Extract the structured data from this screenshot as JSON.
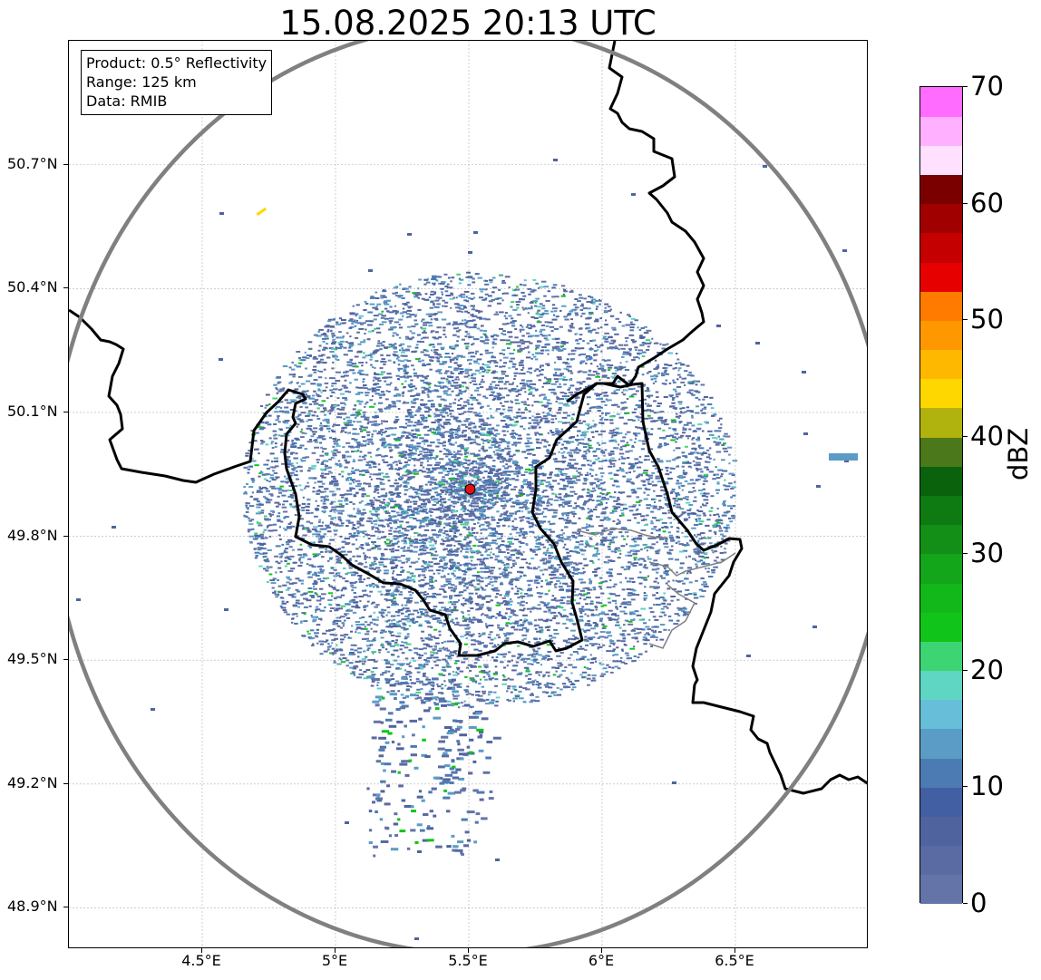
{
  "title": "15.08.2025 20:13 UTC",
  "info": {
    "product": "Product: 0.5° Reflectivity",
    "range": "Range: 125 km",
    "data": "Data: RMIB"
  },
  "map": {
    "lon_range": [
      4.0,
      7.0
    ],
    "lat_range": [
      48.8,
      51.0
    ],
    "radar_site": {
      "lon": 5.505,
      "lat": 49.914
    },
    "range_ring_km": 125,
    "grid": true,
    "lat_ticks": [
      {
        "value": 50.7,
        "label": "50.7°N"
      },
      {
        "value": 50.4,
        "label": "50.4°N"
      },
      {
        "value": 50.1,
        "label": "50.1°N"
      },
      {
        "value": 49.8,
        "label": "49.8°N"
      },
      {
        "value": 49.5,
        "label": "49.5°N"
      },
      {
        "value": 49.2,
        "label": "49.2°N"
      },
      {
        "value": 48.9,
        "label": "48.9°N"
      }
    ],
    "lon_ticks": [
      {
        "value": 4.5,
        "label": "4.5°E"
      },
      {
        "value": 5.0,
        "label": "5°E"
      },
      {
        "value": 5.5,
        "label": "5.5°E"
      },
      {
        "value": 6.0,
        "label": "6°E"
      },
      {
        "value": 6.5,
        "label": "6.5°E"
      }
    ]
  },
  "colorbar": {
    "unit": "dBZ",
    "min": 0,
    "max": 70,
    "step": 2.5,
    "tick_labels": [
      {
        "value": 0,
        "label": "0"
      },
      {
        "value": 10,
        "label": "10"
      },
      {
        "value": 20,
        "label": "20"
      },
      {
        "value": 30,
        "label": "30"
      },
      {
        "value": 40,
        "label": "40"
      },
      {
        "value": 50,
        "label": "50"
      },
      {
        "value": 60,
        "label": "60"
      },
      {
        "value": 70,
        "label": "70"
      }
    ],
    "colors": [
      "#6474a8",
      "#5a6aa2",
      "#4f649f",
      "#435fa3",
      "#4c7bb3",
      "#5a9cc6",
      "#66bed9",
      "#5fd6c3",
      "#3dd473",
      "#11c41a",
      "#12b81a",
      "#13a51a",
      "#138f17",
      "#0e7a12",
      "#0a620c",
      "#4b781a",
      "#b0b20d",
      "#ffd700",
      "#ffb800",
      "#ff9800",
      "#ff7b00",
      "#e60000",
      "#c40000",
      "#a00000",
      "#7a0000",
      "#ffe0ff",
      "#ffb0ff",
      "#ff6cff",
      "#ee33ee"
    ]
  }
}
